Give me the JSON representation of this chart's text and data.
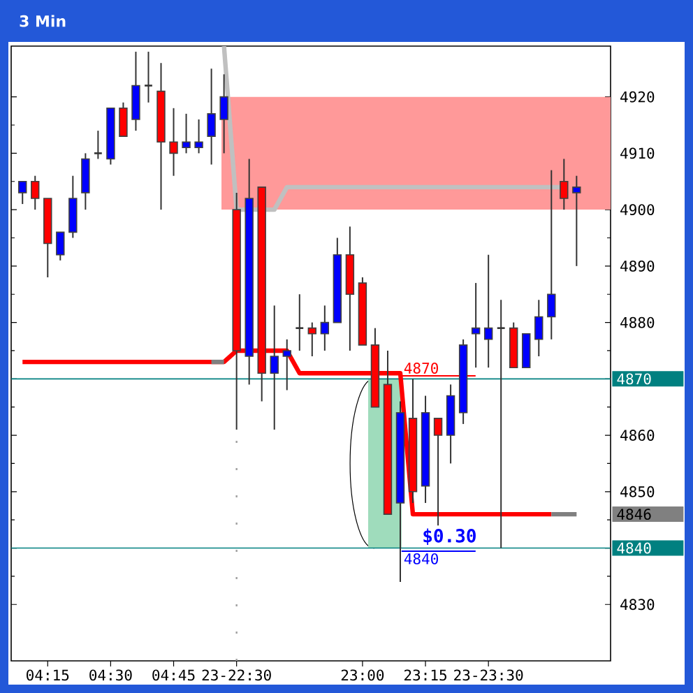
{
  "chart_data": {
    "type": "candlestick",
    "title": "3 Min",
    "categories": [
      null,
      null,
      "04:15",
      null,
      null,
      null,
      null,
      "04:30",
      null,
      null,
      null,
      null,
      "04:45",
      null,
      null,
      null,
      null,
      "23-22:30",
      null,
      null,
      null,
      null,
      null,
      null,
      null,
      null,
      null,
      "23:00",
      null,
      null,
      null,
      null,
      "23:15",
      null,
      null,
      null,
      null,
      "23-23:30",
      null,
      null,
      null,
      null,
      null,
      null,
      null
    ],
    "ohlc": [
      [
        4903,
        4905,
        4901,
        4905
      ],
      [
        4905,
        4906,
        4900,
        4902
      ],
      [
        4902,
        4902,
        4888,
        4894
      ],
      [
        4892,
        4896,
        4891,
        4896
      ],
      [
        4896,
        4906,
        4895,
        4902
      ],
      [
        4903,
        4910,
        4900,
        4909
      ],
      [
        4910,
        4914,
        4909,
        4910
      ],
      [
        4909,
        4918,
        4908,
        4918
      ],
      [
        4918,
        4919,
        4913,
        4913
      ],
      [
        4916,
        4928,
        4914,
        4922
      ],
      [
        4922,
        4928,
        4919,
        4922
      ],
      [
        4921,
        4926,
        4900,
        4912
      ],
      [
        4912,
        4918,
        4906,
        4910
      ],
      [
        4911,
        4917,
        4910,
        4912
      ],
      [
        4911,
        4916,
        4910,
        4912
      ],
      [
        4913,
        4925,
        4908,
        4917
      ],
      [
        4916,
        4924,
        4910,
        4920
      ],
      [
        4900,
        4903,
        4861,
        4875
      ],
      [
        4874,
        4909,
        4869,
        4902
      ],
      [
        4904,
        4904,
        4866,
        4871
      ],
      [
        4871,
        4883,
        4861,
        4874
      ],
      [
        4874,
        4877,
        4868,
        4875
      ],
      [
        4879,
        4885,
        4875,
        4879
      ],
      [
        4879,
        4880,
        4874,
        4878
      ],
      [
        4878,
        4883,
        4875,
        4880
      ],
      [
        4880,
        4895,
        4880,
        4892
      ],
      [
        4892,
        4897,
        4875,
        4885
      ],
      [
        4887,
        4888,
        4876,
        4876
      ],
      [
        4876,
        4879,
        4865,
        4865
      ],
      [
        4869,
        4875,
        4846,
        4846
      ],
      [
        4848,
        4866,
        4834,
        4864
      ],
      [
        4863,
        4870,
        4848,
        4850
      ],
      [
        4851,
        4867,
        4848,
        4864
      ],
      [
        4863,
        4863,
        4844,
        4860
      ],
      [
        4860,
        4869,
        4855,
        4867
      ],
      [
        4864,
        4877,
        4862,
        4876
      ],
      [
        4878,
        4887,
        4872,
        4879
      ],
      [
        4877,
        4892,
        4872,
        4879
      ],
      [
        4879,
        4884,
        4840,
        4879
      ],
      [
        4879,
        4880,
        4872,
        4872
      ],
      [
        4872,
        4878,
        4872,
        4878
      ],
      [
        4877,
        4884,
        4874,
        4881
      ],
      [
        4881,
        4907,
        4877,
        4885
      ],
      [
        4905,
        4909,
        4900,
        4902
      ],
      [
        4903,
        4906,
        4890,
        4904
      ]
    ],
    "colors": [
      "#0000ff",
      "#ff0000",
      "#ff0000",
      "#0000ff",
      "#0000ff",
      "#0000ff",
      "#333333",
      "#0000ff",
      "#ff0000",
      "#0000ff",
      "#333333",
      "#ff0000",
      "#ff0000",
      "#0000ff",
      "#0000ff",
      "#0000ff",
      "#0000ff",
      "#ff0000",
      "#0000ff",
      "#ff0000",
      "#0000ff",
      "#0000ff",
      "#333333",
      "#ff0000",
      "#0000ff",
      "#0000ff",
      "#ff0000",
      "#ff0000",
      "#ff0000",
      "#ff0000",
      "#0000ff",
      "#ff0000",
      "#0000ff",
      "#ff0000",
      "#0000ff",
      "#0000ff",
      "#0000ff",
      "#0000ff",
      "#333333",
      "#ff0000",
      "#0000ff",
      "#0000ff",
      "#0000ff",
      "#ff0000",
      "#0000ff"
    ],
    "series": [
      {
        "type": "line",
        "color": "#ff0000",
        "values": [
          4873,
          4873,
          4873,
          4873,
          4873,
          4873,
          4873,
          4873,
          4873,
          4873,
          4873,
          4873,
          4873,
          4873,
          4873,
          4873,
          4873,
          4875,
          4875,
          4875,
          4875,
          4875,
          4871,
          4871,
          4871,
          4871,
          4871,
          4871,
          4871,
          4871,
          4871,
          4846,
          4846,
          4846,
          4846,
          4846,
          4846,
          4846,
          4846,
          4846,
          4846,
          4846,
          4846,
          null,
          null
        ]
      },
      {
        "type": "line",
        "color": "#808080",
        "values": [
          null,
          null,
          null,
          null,
          null,
          null,
          null,
          null,
          null,
          null,
          null,
          null,
          null,
          null,
          null,
          4873,
          4873,
          null,
          null,
          null,
          null,
          null,
          null,
          null,
          null,
          null,
          null,
          null,
          null,
          null,
          null,
          null,
          null,
          null,
          null,
          null,
          null,
          null,
          null,
          null,
          null,
          null,
          null,
          null,
          null
        ]
      },
      {
        "type": "line",
        "color": "#808080",
        "values": [
          null,
          null,
          null,
          null,
          null,
          null,
          null,
          null,
          null,
          null,
          null,
          null,
          null,
          null,
          null,
          null,
          null,
          null,
          null,
          null,
          null,
          null,
          null,
          null,
          null,
          null,
          null,
          null,
          null,
          null,
          null,
          null,
          null,
          null,
          null,
          null,
          null,
          null,
          null,
          null,
          null,
          null,
          4846,
          4846,
          4846
        ]
      },
      {
        "type": "line",
        "color": "#c0c0c0",
        "values": [
          null,
          null,
          null,
          null,
          null,
          null,
          null,
          null,
          null,
          null,
          null,
          null,
          null,
          null,
          null,
          null,
          4929,
          4900,
          4900,
          4900,
          4900,
          4904,
          4904,
          4904,
          4904,
          4904,
          4904,
          4904,
          4904,
          4904,
          4904,
          4904,
          4904,
          4904,
          4904,
          4904,
          4904,
          4904,
          4904,
          4904,
          4904,
          4904,
          4904,
          4904,
          null
        ]
      }
    ],
    "ylim": [
      4820,
      4929
    ],
    "yticks": [
      4830,
      {
        "value": 4840,
        "label": null
      },
      4850,
      4860,
      {
        "value": 4870,
        "label": null
      },
      4880,
      4890,
      4900,
      4910,
      4920
    ],
    "bands": [
      {
        "axis": "y",
        "from": 4900,
        "to": 4920,
        "color": "#ff9999"
      }
    ],
    "ref_lines": [
      {
        "axis": "y",
        "value": 4870,
        "label": "4870",
        "color": "#008080"
      },
      {
        "axis": "y",
        "value": 4840,
        "label": "4840",
        "color": "#008080"
      },
      {
        "axis": "x",
        "value": "23-22:30",
        "color": "#a0a0a0",
        "line_style": "dotted"
      }
    ],
    "annotations": [
      {
        "text": "4870",
        "y": 4870
      },
      {
        "text": "4840",
        "y": 4840
      },
      {
        "text": "$0.30",
        "y": 4840
      },
      "4846"
    ]
  }
}
